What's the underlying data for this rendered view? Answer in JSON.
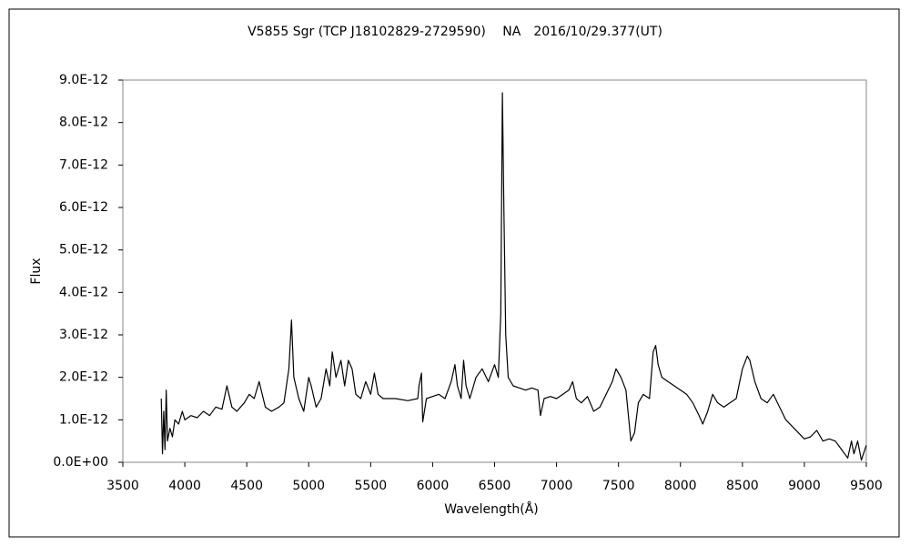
{
  "chart_data": {
    "type": "line",
    "title": "V5855 Sgr (TCP J18102829-2729590)　 NA　2016/10/29.377(UT)",
    "xlabel": "Wavelength(Å)",
    "ylabel": "Flux",
    "color": "#000000",
    "grid": false,
    "xlim": [
      3500,
      9500
    ],
    "xticks": [
      3500,
      4000,
      4500,
      5000,
      5500,
      6000,
      6500,
      7000,
      7500,
      8000,
      8500,
      9000,
      9500
    ],
    "ylim": [
      0,
      9e-12
    ],
    "yticks": [
      {
        "value": 0,
        "label": "0.0E+00"
      },
      {
        "value": 1e-12,
        "label": "1.0E-12"
      },
      {
        "value": 2e-12,
        "label": "2.0E-12"
      },
      {
        "value": 3e-12,
        "label": "3.0E-12"
      },
      {
        "value": 4e-12,
        "label": "4.0E-12"
      },
      {
        "value": 5e-12,
        "label": "5.0E-12"
      },
      {
        "value": 6e-12,
        "label": "6.0E-12"
      },
      {
        "value": 7e-12,
        "label": "7.0E-12"
      },
      {
        "value": 8e-12,
        "label": "8.0E-12"
      },
      {
        "value": 9e-12,
        "label": "9.0E-12"
      }
    ],
    "x": [
      3810,
      3820,
      3830,
      3840,
      3850,
      3860,
      3880,
      3900,
      3920,
      3950,
      3980,
      4000,
      4050,
      4100,
      4150,
      4200,
      4250,
      4300,
      4340,
      4380,
      4420,
      4480,
      4520,
      4560,
      4600,
      4650,
      4700,
      4760,
      4800,
      4840,
      4861,
      4880,
      4920,
      4960,
      5000,
      5020,
      5060,
      5100,
      5140,
      5170,
      5190,
      5220,
      5260,
      5290,
      5320,
      5350,
      5380,
      5420,
      5460,
      5500,
      5530,
      5560,
      5600,
      5700,
      5800,
      5880,
      5890,
      5910,
      5920,
      5950,
      6000,
      6050,
      6100,
      6150,
      6180,
      6200,
      6230,
      6250,
      6270,
      6300,
      6350,
      6400,
      6450,
      6500,
      6530,
      6550,
      6563,
      6575,
      6590,
      6610,
      6650,
      6700,
      6750,
      6800,
      6850,
      6870,
      6900,
      6950,
      7000,
      7050,
      7100,
      7130,
      7160,
      7200,
      7250,
      7300,
      7350,
      7400,
      7450,
      7480,
      7520,
      7560,
      7600,
      7630,
      7660,
      7700,
      7750,
      7780,
      7800,
      7820,
      7850,
      7900,
      7950,
      8000,
      8050,
      8100,
      8150,
      8180,
      8220,
      8260,
      8300,
      8350,
      8400,
      8450,
      8500,
      8540,
      8560,
      8600,
      8650,
      8700,
      8750,
      8800,
      8850,
      8900,
      8950,
      9000,
      9050,
      9100,
      9150,
      9200,
      9250,
      9300,
      9350,
      9380,
      9400,
      9430,
      9460,
      9500
    ],
    "values": [
      1.5e-12,
      2e-13,
      1.2e-12,
      3e-13,
      1.7e-12,
      5e-13,
      8e-13,
      6e-13,
      1e-12,
      9e-13,
      1.2e-12,
      1e-12,
      1.1e-12,
      1.05e-12,
      1.2e-12,
      1.1e-12,
      1.3e-12,
      1.25e-12,
      1.8e-12,
      1.3e-12,
      1.2e-12,
      1.4e-12,
      1.6e-12,
      1.5e-12,
      1.9e-12,
      1.3e-12,
      1.2e-12,
      1.3e-12,
      1.4e-12,
      2.2e-12,
      3.35e-12,
      2e-12,
      1.5e-12,
      1.2e-12,
      2e-12,
      1.8e-12,
      1.3e-12,
      1.5e-12,
      2.2e-12,
      1.8e-12,
      2.6e-12,
      2e-12,
      2.4e-12,
      1.8e-12,
      2.4e-12,
      2.2e-12,
      1.6e-12,
      1.5e-12,
      1.9e-12,
      1.6e-12,
      2.1e-12,
      1.6e-12,
      1.5e-12,
      1.5e-12,
      1.45e-12,
      1.5e-12,
      1.8e-12,
      2.1e-12,
      9.5e-13,
      1.5e-12,
      1.55e-12,
      1.6e-12,
      1.5e-12,
      1.9e-12,
      2.3e-12,
      1.8e-12,
      1.5e-12,
      2.4e-12,
      1.8e-12,
      1.5e-12,
      2e-12,
      2.2e-12,
      1.9e-12,
      2.3e-12,
      2e-12,
      3.5e-12,
      8.7e-12,
      6e-12,
      3e-12,
      2e-12,
      1.8e-12,
      1.75e-12,
      1.7e-12,
      1.75e-12,
      1.7e-12,
      1.1e-12,
      1.5e-12,
      1.55e-12,
      1.5e-12,
      1.6e-12,
      1.7e-12,
      1.9e-12,
      1.5e-12,
      1.4e-12,
      1.55e-12,
      1.2e-12,
      1.3e-12,
      1.6e-12,
      1.9e-12,
      2.2e-12,
      2e-12,
      1.7e-12,
      5e-13,
      7e-13,
      1.4e-12,
      1.6e-12,
      1.5e-12,
      2.6e-12,
      2.75e-12,
      2.3e-12,
      2e-12,
      1.9e-12,
      1.8e-12,
      1.7e-12,
      1.6e-12,
      1.4e-12,
      1.1e-12,
      9e-13,
      1.2e-12,
      1.6e-12,
      1.4e-12,
      1.3e-12,
      1.4e-12,
      1.5e-12,
      2.2e-12,
      2.5e-12,
      2.4e-12,
      1.9e-12,
      1.5e-12,
      1.4e-12,
      1.6e-12,
      1.3e-12,
      1e-12,
      8.5e-13,
      7e-13,
      5.5e-13,
      6e-13,
      7.5e-13,
      5e-13,
      5.5e-13,
      5e-13,
      3e-13,
      1e-13,
      5e-13,
      2e-13,
      5e-13,
      5e-14,
      4e-13
    ]
  }
}
